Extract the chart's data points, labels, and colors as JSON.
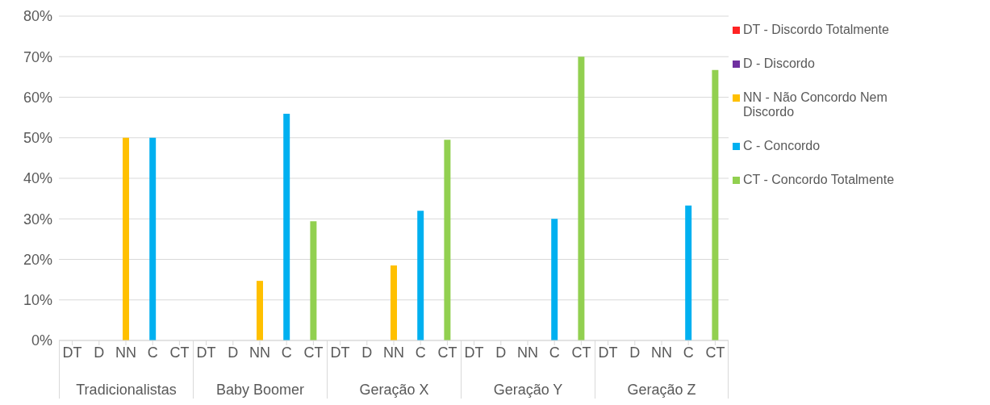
{
  "chart_data": {
    "type": "bar",
    "stacked": true,
    "categories": [
      "DT",
      "D",
      "NN",
      "C",
      "CT",
      "DT",
      "D",
      "NN",
      "C",
      "CT",
      "DT",
      "D",
      "NN",
      "C",
      "CT",
      "DT",
      "D",
      "NN",
      "C",
      "CT",
      "DT",
      "D",
      "NN",
      "C",
      "CT"
    ],
    "annotations": [
      "Tradicionalistas",
      "Baby Boomer",
      "Geração X",
      "Geração Y",
      "Geração Z"
    ],
    "series": [
      {
        "name": "DT - Discordo Totalmente",
        "color": "#ff2323",
        "values": [
          0,
          null,
          null,
          null,
          null,
          0,
          null,
          null,
          null,
          null,
          0,
          null,
          null,
          null,
          null,
          0,
          null,
          null,
          null,
          null,
          0,
          null,
          null,
          null,
          null
        ]
      },
      {
        "name": "D - Discordo",
        "color": "#7030a0",
        "values": [
          null,
          0,
          null,
          null,
          null,
          null,
          0,
          null,
          null,
          null,
          null,
          0,
          null,
          null,
          null,
          null,
          0,
          null,
          null,
          null,
          null,
          0,
          null,
          null,
          null
        ]
      },
      {
        "name": "NN - Não Concordo Nem Discordo",
        "color": "#ffc000",
        "values": [
          null,
          null,
          50,
          null,
          null,
          null,
          null,
          14.7,
          null,
          null,
          null,
          null,
          18.5,
          null,
          null,
          null,
          null,
          0,
          null,
          null,
          null,
          null,
          0,
          null,
          null
        ]
      },
      {
        "name": "C - Concordo",
        "color": "#00b0f0",
        "values": [
          null,
          null,
          null,
          50,
          null,
          null,
          null,
          null,
          55.9,
          null,
          null,
          null,
          null,
          32,
          null,
          null,
          null,
          null,
          30,
          null,
          null,
          null,
          null,
          33.3,
          null
        ]
      },
      {
        "name": "CT - Concordo Totalmente",
        "color": "#92d050",
        "values": [
          null,
          null,
          null,
          null,
          0,
          null,
          null,
          null,
          null,
          29.4,
          null,
          null,
          null,
          null,
          49.5,
          null,
          null,
          null,
          null,
          70,
          null,
          null,
          null,
          null,
          66.7
        ]
      }
    ],
    "ylim": [
      0,
      80
    ],
    "yticks": [
      {
        "value": 0,
        "label": "0%"
      },
      {
        "value": 10,
        "label": "10%"
      },
      {
        "value": 20,
        "label": "20%"
      },
      {
        "value": 30,
        "label": "30%"
      },
      {
        "value": 40,
        "label": "40%"
      },
      {
        "value": 50,
        "label": "50%"
      },
      {
        "value": 60,
        "label": "60%"
      },
      {
        "value": 70,
        "label": "70%"
      },
      {
        "value": 80,
        "label": "80%"
      }
    ],
    "grid": "y",
    "legend": "right"
  }
}
